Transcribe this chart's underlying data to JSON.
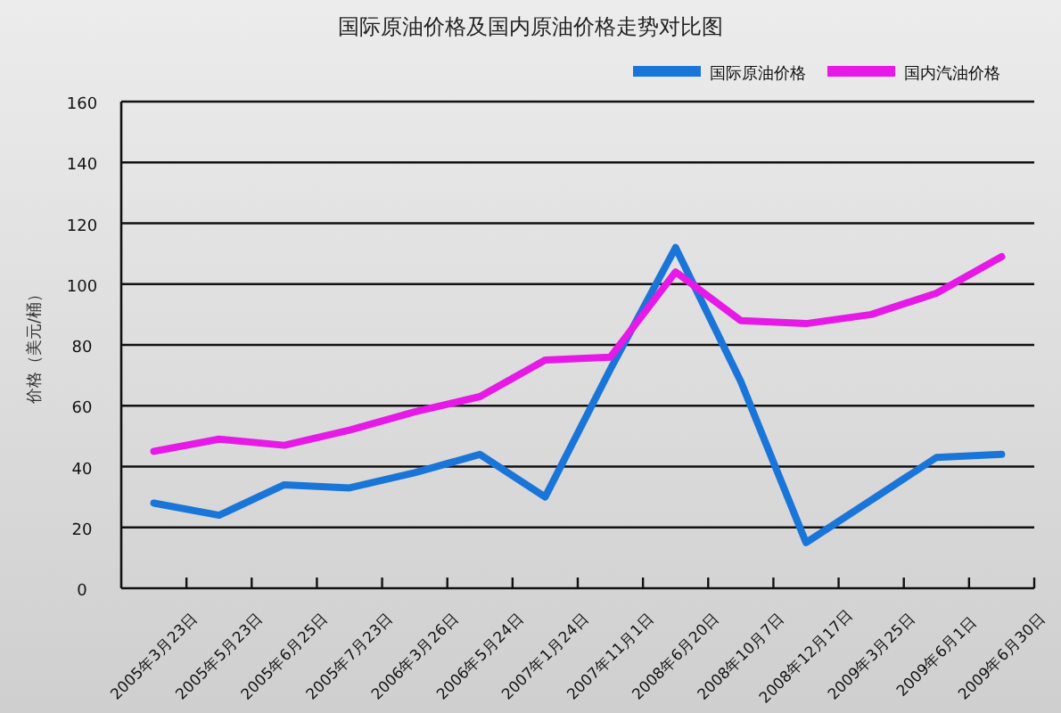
{
  "chart_data": {
    "type": "line",
    "title": "国际原油价格及国内原油价格走势对比图",
    "ylabel": "价格（美元/桶）",
    "categories": [
      "2005年3月23日",
      "2005年5月23日",
      "2005年6月25日",
      "2005年7月23日",
      "2006年3月26日",
      "2006年5月24日",
      "2007年1月24日",
      "2007年11月1日",
      "2008年6月20日",
      "2008年10月7日",
      "2008年12月17日",
      "2009年3月25日",
      "2009年6月1日",
      "2009年6月30日"
    ],
    "series": [
      {
        "name": "国际原油价格",
        "color": "#1a75d9",
        "values": [
          28,
          24,
          34,
          33,
          38,
          44,
          30,
          72,
          112,
          68,
          15,
          29,
          43,
          44
        ]
      },
      {
        "name": "国内汽油价格",
        "color": "#e619e6",
        "values": [
          45,
          49,
          47,
          52,
          58,
          63,
          75,
          76,
          104,
          88,
          87,
          90,
          97,
          109
        ]
      }
    ],
    "ylim": [
      0,
      160
    ],
    "yticks": [
      0,
      20,
      40,
      60,
      80,
      100,
      120,
      140,
      160
    ],
    "grid": "y",
    "legend": "top right",
    "marker": "none",
    "line_style": "solid"
  }
}
